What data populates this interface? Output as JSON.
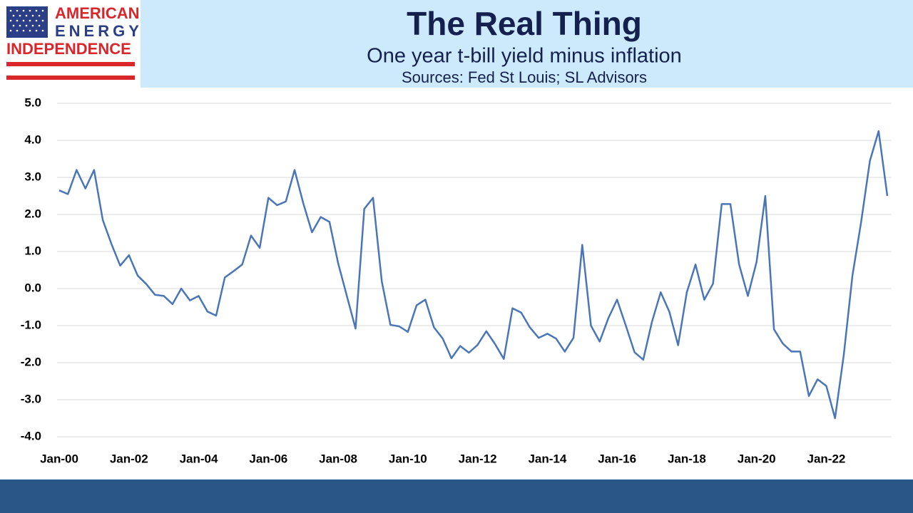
{
  "logo": [
    "AMERICAN",
    "ENERGY",
    "INDEPENDENCE"
  ],
  "chart_data": {
    "type": "line",
    "title": "The Real Thing",
    "subtitle": "One year t-bill yield minus inflation",
    "source": "Sources: Fed St Louis; SL Advisors",
    "categories": [
      "Jan-00",
      null,
      null,
      null,
      null,
      null,
      null,
      null,
      "Jan-02",
      null,
      null,
      null,
      null,
      null,
      null,
      null,
      "Jan-04",
      null,
      null,
      null,
      null,
      null,
      null,
      null,
      "Jan-06",
      null,
      null,
      null,
      null,
      null,
      null,
      null,
      "Jan-08",
      null,
      null,
      null,
      null,
      null,
      null,
      null,
      "Jan-10",
      null,
      null,
      null,
      null,
      null,
      null,
      null,
      "Jan-12",
      null,
      null,
      null,
      null,
      null,
      null,
      null,
      "Jan-14",
      null,
      null,
      null,
      null,
      null,
      null,
      null,
      "Jan-16",
      null,
      null,
      null,
      null,
      null,
      null,
      null,
      "Jan-18",
      null,
      null,
      null,
      null,
      null,
      null,
      null,
      "Jan-20",
      null,
      null,
      null,
      null,
      null,
      null,
      null,
      "Jan-22",
      null,
      null,
      null,
      null,
      null,
      null,
      null
    ],
    "series": [
      {
        "color": "#4a76b8",
        "values": [
          2.65,
          2.55,
          3.2,
          2.7,
          3.2,
          1.85,
          1.2,
          0.62,
          0.9,
          0.35,
          0.12,
          -0.17,
          -0.2,
          -0.42,
          0.0,
          -0.32,
          -0.2,
          -0.62,
          -0.73,
          0.3,
          0.47,
          0.65,
          1.43,
          1.1,
          2.45,
          2.25,
          2.35,
          3.2,
          2.3,
          1.52,
          1.93,
          1.8,
          0.68,
          -0.2,
          -1.08,
          2.15,
          2.45,
          0.2,
          -0.98,
          -1.02,
          -1.17,
          -0.45,
          -0.3,
          -1.05,
          -1.35,
          -1.88,
          -1.55,
          -1.73,
          -1.52,
          -1.15,
          -1.5,
          -1.9,
          -0.53,
          -0.65,
          -1.05,
          -1.33,
          -1.22,
          -1.35,
          -1.7,
          -1.33,
          1.18,
          -1.0,
          -1.43,
          -0.8,
          -0.3,
          -1.0,
          -1.72,
          -1.92,
          -0.9,
          -0.1,
          -0.63,
          -1.53,
          -0.1,
          0.65,
          -0.3,
          0.13,
          2.28,
          2.28,
          0.65,
          -0.2,
          0.72,
          2.5,
          -1.1,
          -1.48,
          -1.7,
          -1.7,
          -2.9,
          -2.45,
          -2.63,
          -3.5,
          -1.8,
          0.35,
          1.8,
          3.45,
          4.25,
          2.5
        ]
      }
    ],
    "ylim": [
      -4,
      5
    ],
    "yticks": [
      {
        "value": -4,
        "label": "-4.0"
      },
      {
        "value": -3,
        "label": "-3.0"
      },
      {
        "value": -2,
        "label": "-2.0"
      },
      {
        "value": -1,
        "label": "-1.0"
      },
      {
        "value": 0,
        "label": "0.0"
      },
      {
        "value": 1,
        "label": "1.0"
      },
      {
        "value": 2,
        "label": "2.0"
      },
      {
        "value": 3,
        "label": "3.0"
      },
      {
        "value": 4,
        "label": "4.0"
      },
      {
        "value": 5,
        "label": "5.0"
      }
    ],
    "grid": true
  }
}
